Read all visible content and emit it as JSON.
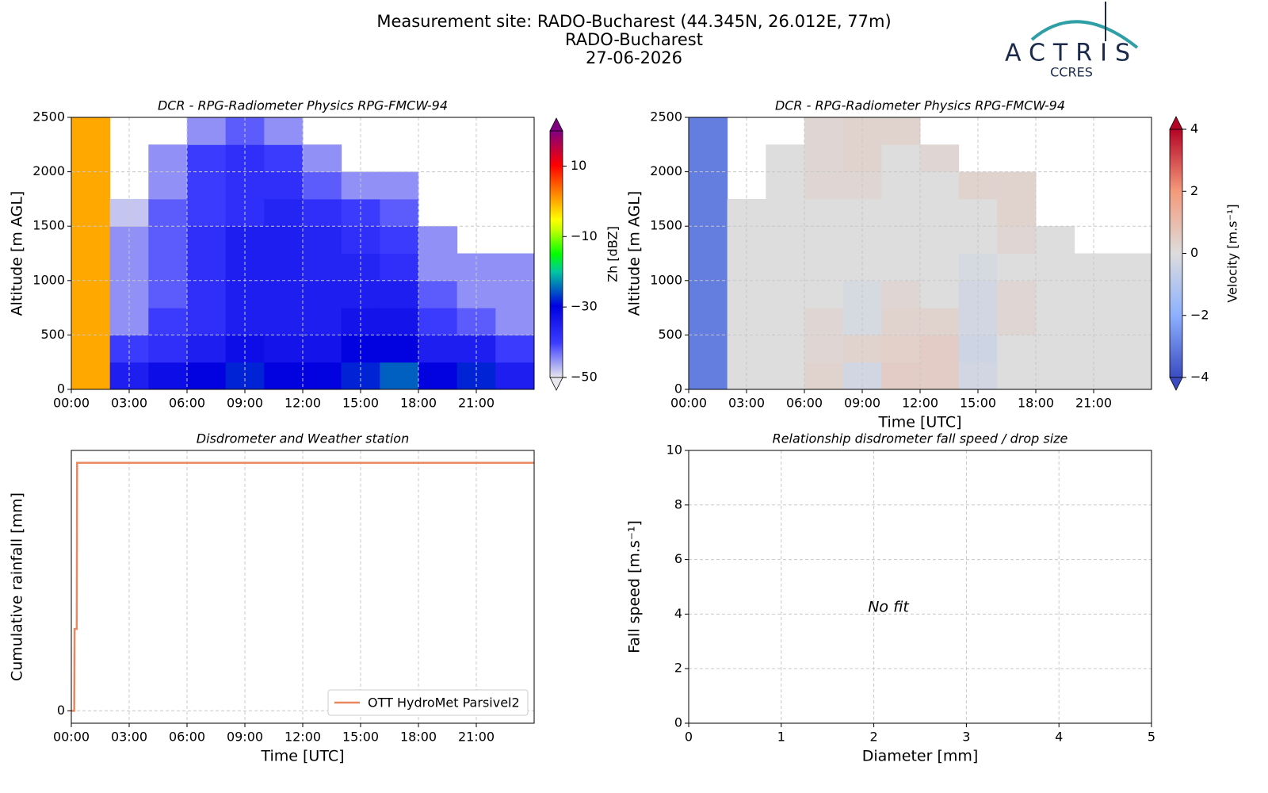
{
  "header": {
    "title_lines": [
      "Measurement site: RADO-Bucharest (44.345N, 26.012E, 77m)",
      "RADO-Bucharest",
      "27-06-2026"
    ],
    "logo": "ACTRIS",
    "logo_sub": "CCRES"
  },
  "chart_data": [
    {
      "type": "heatmap",
      "title": "DCR - RPG-Radiometer Physics RPG-FMCW-94",
      "ylabel": "Altitude [m AGL]",
      "colormap": "jet",
      "clabel": "Zh [dBZ]",
      "clim": [
        -50,
        20
      ],
      "cticks": [
        {
          "value": -50,
          "label": "−50"
        },
        {
          "value": -30,
          "label": "−30"
        },
        {
          "value": -10,
          "label": "−10"
        },
        10
      ],
      "x_bins": [
        0,
        2,
        4,
        6,
        8,
        10,
        12,
        14,
        16,
        18,
        20,
        22,
        24
      ],
      "y_bins": [
        0,
        250,
        500,
        750,
        1000,
        1250,
        1500,
        1750,
        2000,
        2250,
        2500
      ],
      "z": [
        [
          0,
          -35,
          -32,
          -30,
          -28,
          -30,
          -30,
          -28,
          -25,
          -30,
          -28,
          -35
        ],
        [
          0,
          -40,
          -38,
          -35,
          -32,
          -33,
          -33,
          -30,
          -30,
          -35,
          -35,
          -40
        ],
        [
          0,
          -45,
          -40,
          -38,
          -35,
          -35,
          -35,
          -33,
          -33,
          -40,
          -42,
          -45
        ],
        [
          0,
          -45,
          -42,
          -38,
          -35,
          -35,
          -35,
          -35,
          -35,
          -42,
          -45,
          -45
        ],
        [
          0,
          -45,
          -42,
          -38,
          -35,
          -35,
          -36,
          -36,
          -38,
          -45,
          -45,
          -45
        ],
        [
          0,
          -45,
          -42,
          -38,
          -35,
          -35,
          -36,
          -38,
          -40,
          -45,
          null,
          null
        ],
        [
          0,
          -48,
          -42,
          -40,
          -38,
          -36,
          -38,
          -40,
          -42,
          null,
          null,
          null
        ],
        [
          0,
          null,
          -45,
          -40,
          -38,
          -38,
          -42,
          -45,
          -45,
          null,
          null,
          null
        ],
        [
          0,
          null,
          -45,
          -40,
          -38,
          -40,
          -45,
          null,
          null,
          null,
          null,
          null
        ],
        [
          0,
          null,
          null,
          -45,
          -42,
          -45,
          null,
          null,
          null,
          null,
          null,
          null
        ]
      ],
      "xlim": [
        0,
        24
      ],
      "xticks": [
        {
          "value": 0,
          "label": "00:00"
        },
        {
          "value": 3,
          "label": "03:00"
        },
        {
          "value": 6,
          "label": "06:00"
        },
        {
          "value": 9,
          "label": "09:00"
        },
        {
          "value": 12,
          "label": "12:00"
        },
        {
          "value": 15,
          "label": "15:00"
        },
        {
          "value": 18,
          "label": "18:00"
        },
        {
          "value": 21,
          "label": "21:00"
        }
      ],
      "ylim": [
        0,
        2500
      ],
      "yticks": [
        0,
        500,
        1000,
        1500,
        2000,
        2500
      ],
      "grid": true
    },
    {
      "type": "heatmap",
      "title": "DCR - RPG-Radiometer Physics RPG-FMCW-94",
      "ylabel": "Altitude [m AGL]",
      "xlabel": "Time [UTC]",
      "colormap": "coolwarm",
      "clabel": "Velocity [m.s⁻¹]",
      "clim": [
        -4,
        4
      ],
      "cticks": [
        {
          "value": -4,
          "label": "−4"
        },
        {
          "value": -2,
          "label": "−2"
        },
        0,
        2,
        4
      ],
      "x_bins": [
        0,
        2,
        4,
        6,
        8,
        10,
        12,
        14,
        16,
        18,
        20,
        22,
        24
      ],
      "y_bins": [
        0,
        250,
        500,
        750,
        1000,
        1250,
        1500,
        1750,
        2000,
        2250,
        2500
      ],
      "z": [
        [
          -3,
          0,
          0,
          0.3,
          -0.3,
          0.5,
          0.5,
          -0.3,
          0,
          0,
          0,
          0
        ],
        [
          -3,
          0,
          0,
          0.2,
          0.3,
          0.4,
          0.5,
          -0.4,
          0,
          0,
          0,
          0
        ],
        [
          -3,
          0,
          0,
          0.2,
          -0.2,
          0.3,
          0.3,
          -0.3,
          0.2,
          0,
          0,
          0
        ],
        [
          -3,
          0,
          0,
          0,
          -0.2,
          0.2,
          0,
          -0.3,
          0.2,
          0,
          0,
          0
        ],
        [
          -3,
          0,
          0,
          0,
          0,
          0,
          0,
          -0.2,
          0,
          0,
          0,
          0
        ],
        [
          -3,
          0,
          0,
          0,
          0,
          0,
          0,
          0,
          0.2,
          0,
          null,
          null
        ],
        [
          -3,
          0,
          0,
          0,
          0,
          0,
          0,
          0,
          0.3,
          null,
          null,
          null
        ],
        [
          -3,
          null,
          0,
          0.2,
          0.2,
          0,
          0,
          0.3,
          0.3,
          null,
          null,
          null
        ],
        [
          -3,
          null,
          0,
          0.2,
          0.3,
          0,
          0.2,
          null,
          null,
          null,
          null,
          null
        ],
        [
          -3,
          null,
          null,
          0.2,
          0.3,
          0.3,
          null,
          null,
          null,
          null,
          null,
          null
        ]
      ],
      "xlim": [
        0,
        24
      ],
      "xticks": [
        {
          "value": 0,
          "label": "00:00"
        },
        {
          "value": 3,
          "label": "03:00"
        },
        {
          "value": 6,
          "label": "06:00"
        },
        {
          "value": 9,
          "label": "09:00"
        },
        {
          "value": 12,
          "label": "12:00"
        },
        {
          "value": 15,
          "label": "15:00"
        },
        {
          "value": 18,
          "label": "18:00"
        },
        {
          "value": 21,
          "label": "21:00"
        }
      ],
      "ylim": [
        0,
        2500
      ],
      "yticks": [
        0,
        500,
        1000,
        1500,
        2000,
        2500
      ],
      "grid": true
    },
    {
      "type": "line",
      "title": "Disdrometer and Weather station",
      "ylabel": "Cumulative rainfall [mm]",
      "xlabel": "Time [UTC]",
      "series": [
        {
          "name": "OTT HydroMet Parsivel2",
          "color": "#e9885f",
          "x": [
            0,
            0.15,
            0.17,
            0.28,
            0.3,
            24
          ],
          "values": [
            0,
            0,
            0.33,
            0.33,
            1,
            1
          ]
        }
      ],
      "legend": "lower right",
      "xlim": [
        0,
        24
      ],
      "xticks": [
        {
          "value": 0,
          "label": "00:00"
        },
        {
          "value": 3,
          "label": "03:00"
        },
        {
          "value": 6,
          "label": "06:00"
        },
        {
          "value": 9,
          "label": "09:00"
        },
        {
          "value": 12,
          "label": "12:00"
        },
        {
          "value": 15,
          "label": "15:00"
        },
        {
          "value": 18,
          "label": "18:00"
        },
        {
          "value": 21,
          "label": "21:00"
        }
      ],
      "ylim": [
        -0.05,
        1.05
      ],
      "yticks": [
        0
      ],
      "grid": true
    },
    {
      "type": "scatter",
      "title": "Relationship disdrometer fall speed / drop size",
      "ylabel": "Fall speed [m.s⁻¹]",
      "xlabel": "Diameter [mm]",
      "annotation": "No fit",
      "xlim": [
        0,
        5
      ],
      "xticks": [
        0,
        1,
        2,
        3,
        4,
        5
      ],
      "ylim": [
        0,
        10
      ],
      "yticks": [
        0,
        2,
        4,
        6,
        8,
        10
      ],
      "grid": true
    }
  ]
}
